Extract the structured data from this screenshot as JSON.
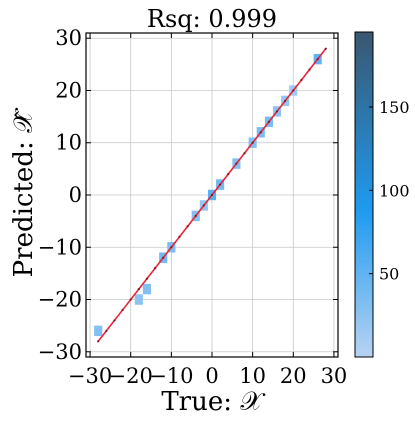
{
  "chart_data": {
    "type": "heatmap",
    "title": "Rsq: 0.999",
    "xlabel": "True: 𝒳",
    "ylabel": "Predicted: 𝒳̂",
    "xlim": [
      -31,
      31
    ],
    "ylim": [
      -31,
      31
    ],
    "xticks": [
      -30,
      -20,
      -10,
      0,
      10,
      20,
      30
    ],
    "yticks": [
      -30,
      -20,
      -10,
      0,
      10,
      20,
      30
    ],
    "xtick_labels": [
      "−30",
      "−20",
      "−10",
      "0",
      "10",
      "20",
      "30"
    ],
    "ytick_labels": [
      "−30",
      "−20",
      "−10",
      "0",
      "10",
      "20",
      "30"
    ],
    "grid": true,
    "bin_size": 2,
    "cells": [
      {
        "x": -28,
        "y": -26,
        "count": 30
      },
      {
        "x": -18,
        "y": -20,
        "count": 25
      },
      {
        "x": -16,
        "y": -18,
        "count": 30
      },
      {
        "x": -12,
        "y": -12,
        "count": 40
      },
      {
        "x": -10,
        "y": -10,
        "count": 35
      },
      {
        "x": -4,
        "y": -4,
        "count": 30
      },
      {
        "x": -2,
        "y": -2,
        "count": 20
      },
      {
        "x": 0,
        "y": 0,
        "count": 55
      },
      {
        "x": 2,
        "y": 2,
        "count": 40
      },
      {
        "x": 6,
        "y": 6,
        "count": 30
      },
      {
        "x": 10,
        "y": 10,
        "count": 30
      },
      {
        "x": 12,
        "y": 12,
        "count": 35
      },
      {
        "x": 14,
        "y": 14,
        "count": 35
      },
      {
        "x": 16,
        "y": 16,
        "count": 25
      },
      {
        "x": 18,
        "y": 18,
        "count": 20
      },
      {
        "x": 20,
        "y": 20,
        "count": 15
      },
      {
        "x": 26,
        "y": 26,
        "count": 50
      }
    ],
    "fit_line": {
      "x": [
        -28,
        28
      ],
      "y": [
        -28,
        28
      ],
      "color": "#e8253a"
    },
    "colorbar": {
      "min": 0,
      "max": 195,
      "ticks": [
        50,
        100,
        150
      ],
      "tick_labels": [
        "50",
        "100",
        "150"
      ],
      "colors": [
        "#b7d3f2",
        "#1e9bf0",
        "#3a5770"
      ]
    }
  }
}
